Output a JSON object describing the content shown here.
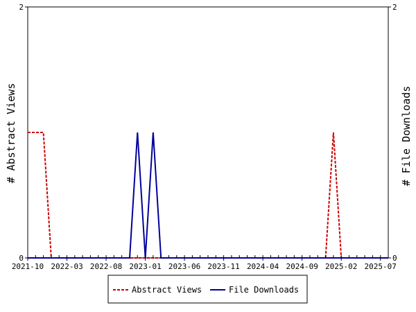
{
  "chart_data": {
    "type": "line",
    "x_tick_labels": [
      "2021-10",
      "2022-03",
      "2022-08",
      "2023-01",
      "2023-06",
      "2023-11",
      "2024-04",
      "2024-09",
      "2025-02",
      "2025-07"
    ],
    "x_tick_dates": [
      "2021-10",
      "2022-03",
      "2022-08",
      "2023-01",
      "2023-06",
      "2023-11",
      "2024-04",
      "2024-09",
      "2025-02",
      "2025-07"
    ],
    "xlim": [
      "2021-10",
      "2025-08"
    ],
    "ylim": [
      0,
      2
    ],
    "y_ticks": [
      0,
      2
    ],
    "y_left_label": "# Abstract Views",
    "y_right_label": "# File Downloads",
    "y_right_ticks": [
      0,
      2
    ],
    "grid": false,
    "legend_position": "bottom",
    "series": [
      {
        "name": "Abstract Views",
        "color": "#cc0000",
        "style": "dashed",
        "axis": "left",
        "points": [
          [
            "2021-10",
            1
          ],
          [
            "2021-11",
            1
          ],
          [
            "2021-12",
            1
          ],
          [
            "2022-01",
            0
          ],
          [
            "2022-02",
            0
          ],
          [
            "2024-11",
            0
          ],
          [
            "2024-12",
            0
          ],
          [
            "2025-01",
            1
          ],
          [
            "2025-02",
            0
          ],
          [
            "2025-08",
            0
          ]
        ]
      },
      {
        "name": "File Downloads",
        "color": "#000099",
        "style": "solid",
        "axis": "right",
        "points": [
          [
            "2021-10",
            0
          ],
          [
            "2022-10",
            0
          ],
          [
            "2022-11",
            0
          ],
          [
            "2022-12",
            1
          ],
          [
            "2023-01",
            0
          ],
          [
            "2023-02",
            1
          ],
          [
            "2023-03",
            0
          ],
          [
            "2025-08",
            0
          ]
        ]
      }
    ]
  }
}
